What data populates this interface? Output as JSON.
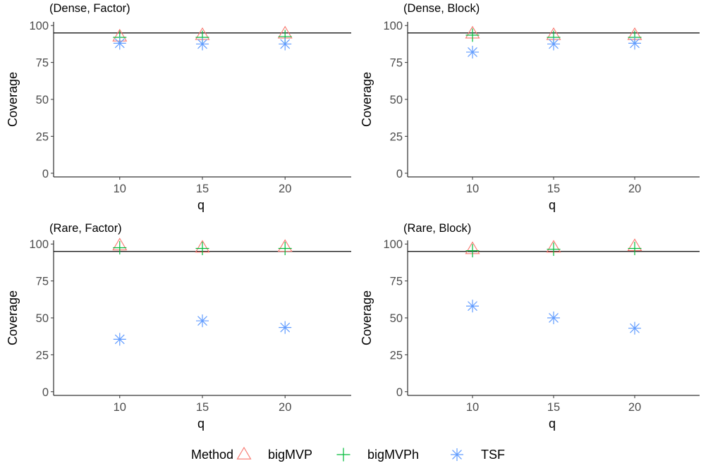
{
  "chart_data": [
    {
      "type": "scatter",
      "title": "(Dense, Factor)",
      "xlabel": "q",
      "ylabel": "Coverage",
      "categories": [
        "10",
        "15",
        "20"
      ],
      "ylim": [
        -2.5,
        102.5
      ],
      "yticks": [
        0,
        25,
        50,
        75,
        100
      ],
      "reference_line": 95,
      "series": [
        {
          "name": "bigMVP",
          "values": [
            92.5,
            93.5,
            94.5
          ]
        },
        {
          "name": "bigMVPh",
          "values": [
            92,
            92,
            92.5
          ]
        },
        {
          "name": "TSF",
          "values": [
            88,
            87.5,
            87.5
          ]
        }
      ]
    },
    {
      "type": "scatter",
      "title": "(Dense, Block)",
      "xlabel": "q",
      "ylabel": "Coverage",
      "categories": [
        "10",
        "15",
        "20"
      ],
      "ylim": [
        -2.5,
        102.5
      ],
      "yticks": [
        0,
        25,
        50,
        75,
        100
      ],
      "reference_line": 95,
      "series": [
        {
          "name": "bigMVP",
          "values": [
            94.5,
            93.5,
            93.5
          ]
        },
        {
          "name": "bigMVPh",
          "values": [
            93.5,
            92,
            92
          ]
        },
        {
          "name": "TSF",
          "values": [
            82,
            87.5,
            88
          ]
        }
      ]
    },
    {
      "type": "scatter",
      "title": "(Rare, Factor)",
      "xlabel": "q",
      "ylabel": "Coverage",
      "categories": [
        "10",
        "15",
        "20"
      ],
      "ylim": [
        -2.5,
        102.5
      ],
      "yticks": [
        0,
        25,
        50,
        75,
        100
      ],
      "reference_line": 95,
      "series": [
        {
          "name": "bigMVP",
          "values": [
            99,
            97.5,
            98
          ]
        },
        {
          "name": "bigMVPh",
          "values": [
            97.5,
            97,
            97
          ]
        },
        {
          "name": "TSF",
          "values": [
            35.5,
            48,
            43.5
          ]
        }
      ]
    },
    {
      "type": "scatter",
      "title": "(Rare, Block)",
      "xlabel": "q",
      "ylabel": "Coverage",
      "categories": [
        "10",
        "15",
        "20"
      ],
      "ylim": [
        -2.5,
        102.5
      ],
      "yticks": [
        0,
        25,
        50,
        75,
        100
      ],
      "reference_line": 95,
      "series": [
        {
          "name": "bigMVP",
          "values": [
            96.5,
            97.5,
            98.5
          ]
        },
        {
          "name": "bigMVPh",
          "values": [
            95.5,
            96.5,
            97
          ]
        },
        {
          "name": "TSF",
          "values": [
            58,
            50,
            43
          ]
        }
      ]
    }
  ],
  "legend": {
    "title": "Method",
    "items": [
      {
        "label": "bigMVP",
        "shape": "triangle-open",
        "color": "#F8766D"
      },
      {
        "label": "bigMVPh",
        "shape": "plus",
        "color": "#00BA38"
      },
      {
        "label": "TSF",
        "shape": "asterisk",
        "color": "#619CFF"
      }
    ]
  }
}
